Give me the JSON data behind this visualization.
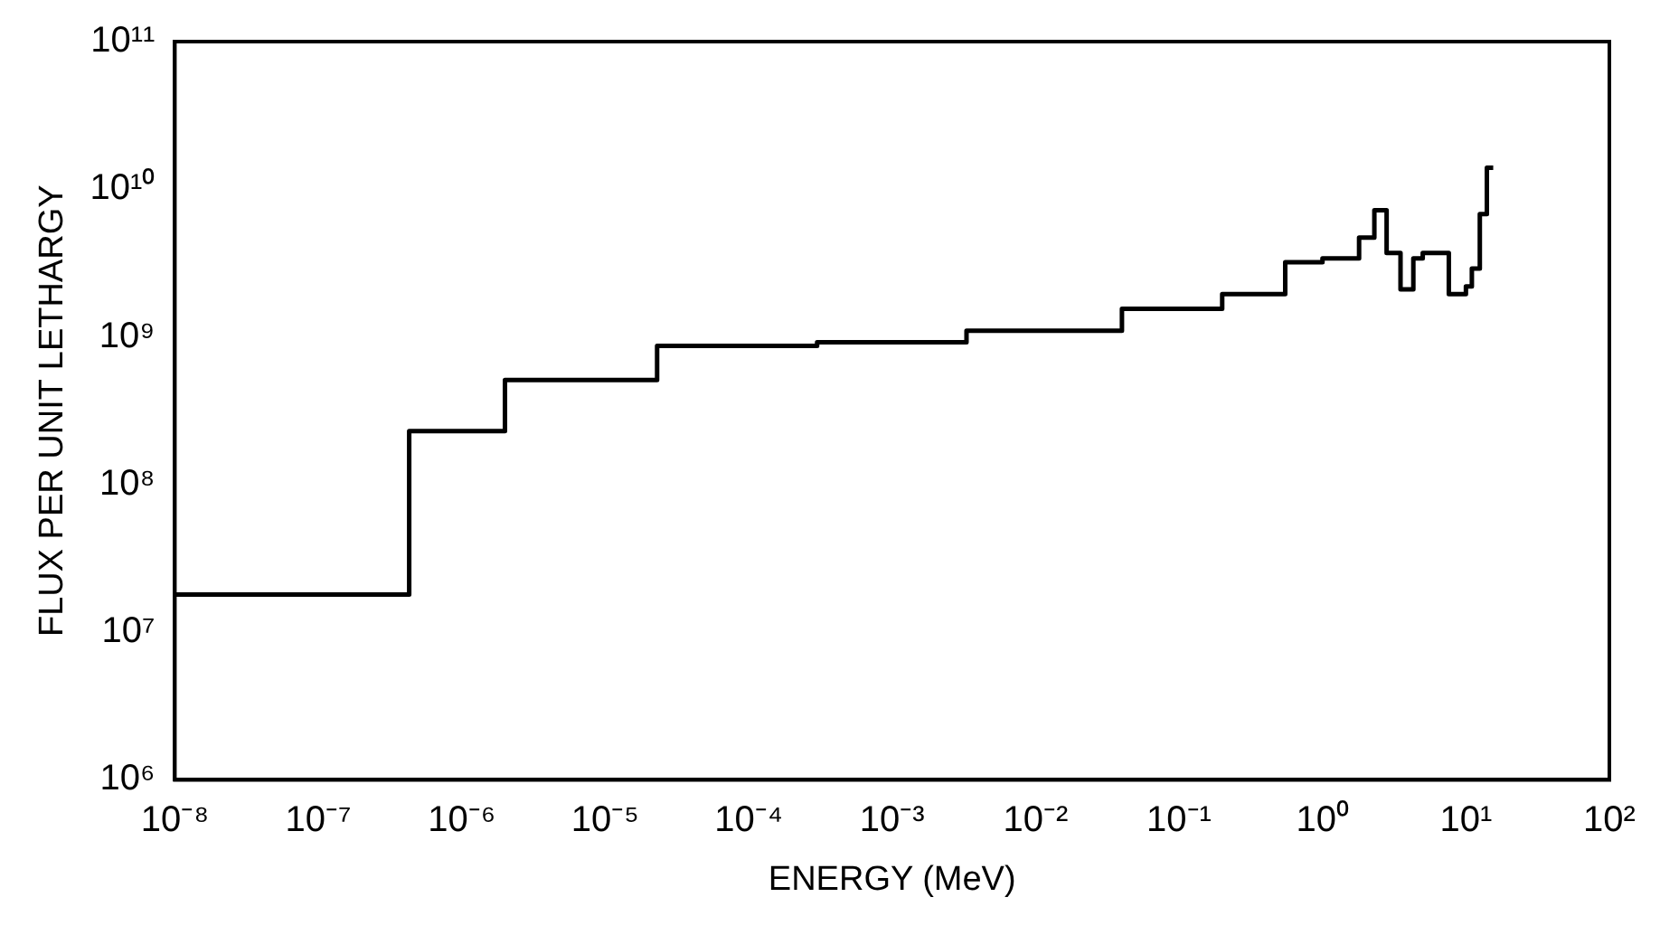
{
  "chart_data": {
    "type": "step",
    "xlabel": "ENERGY (MeV)",
    "ylabel": "FLUX PER UNIT LETHARGY",
    "log": "xy",
    "grid": false,
    "legend": false,
    "marker": "none",
    "line_style": "solid",
    "x": [
      1e-08,
      4.3e-07,
      2e-06,
      2.3e-05,
      0.0003,
      0.0033,
      0.04,
      0.2,
      0.55,
      1.0,
      1.8,
      2.3,
      2.8,
      3.5,
      4.3,
      5.0,
      7.6,
      10,
      11,
      12.5,
      14,
      15.5
    ],
    "series": [
      {
        "color": "#000000",
        "values": [
          18000000.0,
          230000000.0,
          510000000.0,
          870000000.0,
          920000000.0,
          1100000000.0,
          1550000000.0,
          1950000000.0,
          3200000000.0,
          3400000000.0,
          4700000000.0,
          7200000000.0,
          3700000000.0,
          2100000000.0,
          3400000000.0,
          3700000000.0,
          1950000000.0,
          2200000000.0,
          2900000000.0,
          6800000000.0,
          14000000000.0,
          14000000000.0
        ]
      }
    ],
    "xlim": [
      1e-08,
      100
    ],
    "xticks": [
      {
        "value": 1e-08,
        "label": "10⁻⁸"
      },
      {
        "value": 1e-07,
        "label": "10⁻⁷"
      },
      {
        "value": 1e-06,
        "label": "10⁻⁶"
      },
      {
        "value": 1e-05,
        "label": "10⁻⁵"
      },
      {
        "value": 0.0001,
        "label": "10⁻⁴"
      },
      {
        "value": 0.001,
        "label": "10⁻³"
      },
      {
        "value": 0.01,
        "label": "10⁻²"
      },
      {
        "value": 0.1,
        "label": "10⁻¹"
      },
      {
        "value": 1,
        "label": "10⁰"
      },
      {
        "value": 10,
        "label": "10¹"
      },
      {
        "value": 100,
        "label": "10²"
      }
    ],
    "ylim": [
      1000000.0,
      100000000000.0
    ],
    "yticks": [
      {
        "value": 1000000.0,
        "label": "10⁶"
      },
      {
        "value": 10000000.0,
        "label": "10⁷"
      },
      {
        "value": 100000000.0,
        "label": "10⁸"
      },
      {
        "value": 1000000000.0,
        "label": "10⁹"
      },
      {
        "value": 10000000000.0,
        "label": "10¹⁰"
      },
      {
        "value": 100000000000.0,
        "label": "10¹¹"
      }
    ]
  }
}
